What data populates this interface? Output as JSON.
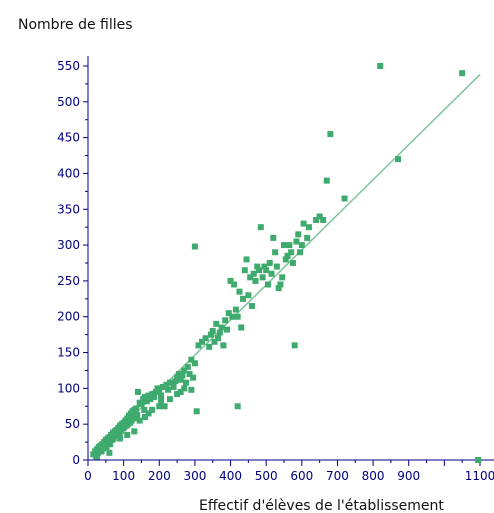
{
  "chart_data": {
    "type": "scatter",
    "title": "",
    "xlabel": "Effectif d'élèves de l'établissement",
    "ylabel": "Nombre de filles",
    "xlim": [
      0,
      1100
    ],
    "ylim": [
      0,
      550
    ],
    "x_ticks": [
      0,
      100,
      200,
      300,
      400,
      500,
      600,
      700,
      800,
      900,
      1100
    ],
    "y_ticks": [
      0,
      50,
      100,
      150,
      200,
      250,
      300,
      350,
      400,
      450,
      500,
      550
    ],
    "grid": false,
    "legend": "none",
    "colors": {
      "points": "#3faa6e",
      "trend": "#7cc49b",
      "axis": "#00008b",
      "tick_text": "#000080"
    },
    "trendline": {
      "x1": 15,
      "y1": 7,
      "x2": 1100,
      "y2": 538
    },
    "points": [
      [
        15,
        8
      ],
      [
        20,
        12
      ],
      [
        22,
        6
      ],
      [
        25,
        15
      ],
      [
        28,
        10
      ],
      [
        30,
        18
      ],
      [
        32,
        14
      ],
      [
        35,
        20
      ],
      [
        38,
        12
      ],
      [
        40,
        22
      ],
      [
        42,
        16
      ],
      [
        45,
        25
      ],
      [
        48,
        20
      ],
      [
        50,
        28
      ],
      [
        52,
        18
      ],
      [
        55,
        30
      ],
      [
        58,
        24
      ],
      [
        60,
        32
      ],
      [
        62,
        22
      ],
      [
        65,
        35
      ],
      [
        68,
        28
      ],
      [
        70,
        38
      ],
      [
        72,
        30
      ],
      [
        75,
        40
      ],
      [
        78,
        34
      ],
      [
        80,
        42
      ],
      [
        82,
        36
      ],
      [
        85,
        45
      ],
      [
        88,
        38
      ],
      [
        90,
        48
      ],
      [
        92,
        40
      ],
      [
        95,
        50
      ],
      [
        98,
        44
      ],
      [
        100,
        52
      ],
      [
        102,
        46
      ],
      [
        105,
        55
      ],
      [
        108,
        48
      ],
      [
        110,
        58
      ],
      [
        112,
        50
      ],
      [
        115,
        62
      ],
      [
        118,
        52
      ],
      [
        120,
        65
      ],
      [
        122,
        55
      ],
      [
        125,
        68
      ],
      [
        128,
        58
      ],
      [
        130,
        70
      ],
      [
        132,
        60
      ],
      [
        135,
        72
      ],
      [
        138,
        63
      ],
      [
        140,
        95
      ],
      [
        145,
        80
      ],
      [
        150,
        78
      ],
      [
        155,
        85
      ],
      [
        158,
        70
      ],
      [
        160,
        88
      ],
      [
        165,
        82
      ],
      [
        170,
        90
      ],
      [
        175,
        85
      ],
      [
        180,
        92
      ],
      [
        185,
        88
      ],
      [
        190,
        95
      ],
      [
        195,
        100
      ],
      [
        200,
        98
      ],
      [
        205,
        90
      ],
      [
        210,
        102
      ],
      [
        215,
        75
      ],
      [
        220,
        105
      ],
      [
        225,
        98
      ],
      [
        230,
        108
      ],
      [
        240,
        102
      ],
      [
        245,
        110
      ],
      [
        250,
        115
      ],
      [
        255,
        120
      ],
      [
        260,
        112
      ],
      [
        265,
        118
      ],
      [
        270,
        125
      ],
      [
        275,
        108
      ],
      [
        280,
        130
      ],
      [
        285,
        120
      ],
      [
        290,
        140
      ],
      [
        295,
        115
      ],
      [
        300,
        135
      ],
      [
        305,
        68
      ],
      [
        310,
        160
      ],
      [
        320,
        165
      ],
      [
        330,
        170
      ],
      [
        340,
        158
      ],
      [
        345,
        175
      ],
      [
        350,
        180
      ],
      [
        355,
        165
      ],
      [
        360,
        190
      ],
      [
        365,
        170
      ],
      [
        370,
        178
      ],
      [
        375,
        185
      ],
      [
        380,
        160
      ],
      [
        385,
        195
      ],
      [
        390,
        182
      ],
      [
        395,
        205
      ],
      [
        400,
        250
      ],
      [
        405,
        200
      ],
      [
        410,
        245
      ],
      [
        415,
        210
      ],
      [
        420,
        200
      ],
      [
        425,
        235
      ],
      [
        430,
        185
      ],
      [
        435,
        225
      ],
      [
        440,
        265
      ],
      [
        445,
        280
      ],
      [
        450,
        230
      ],
      [
        455,
        255
      ],
      [
        460,
        215
      ],
      [
        465,
        260
      ],
      [
        470,
        250
      ],
      [
        475,
        270
      ],
      [
        480,
        265
      ],
      [
        485,
        325
      ],
      [
        490,
        255
      ],
      [
        495,
        270
      ],
      [
        500,
        265
      ],
      [
        505,
        245
      ],
      [
        510,
        275
      ],
      [
        515,
        260
      ],
      [
        520,
        310
      ],
      [
        525,
        290
      ],
      [
        530,
        270
      ],
      [
        535,
        240
      ],
      [
        540,
        245
      ],
      [
        545,
        255
      ],
      [
        550,
        300
      ],
      [
        555,
        280
      ],
      [
        560,
        285
      ],
      [
        565,
        300
      ],
      [
        570,
        290
      ],
      [
        575,
        275
      ],
      [
        580,
        160
      ],
      [
        585,
        305
      ],
      [
        590,
        315
      ],
      [
        595,
        290
      ],
      [
        600,
        300
      ],
      [
        605,
        330
      ],
      [
        615,
        310
      ],
      [
        620,
        325
      ],
      [
        640,
        335
      ],
      [
        650,
        340
      ],
      [
        660,
        335
      ],
      [
        670,
        390
      ],
      [
        680,
        455
      ],
      [
        720,
        365
      ],
      [
        820,
        550
      ],
      [
        870,
        420
      ],
      [
        1050,
        540
      ],
      [
        1095,
        0
      ],
      [
        25,
        5
      ],
      [
        60,
        10
      ],
      [
        90,
        30
      ],
      [
        110,
        35
      ],
      [
        130,
        40
      ],
      [
        160,
        60
      ],
      [
        180,
        70
      ],
      [
        200,
        75
      ],
      [
        230,
        85
      ],
      [
        250,
        92
      ],
      [
        270,
        100
      ],
      [
        290,
        98
      ],
      [
        300,
        298
      ],
      [
        420,
        75
      ],
      [
        170,
        65
      ],
      [
        145,
        55
      ],
      [
        205,
        82
      ],
      [
        260,
        95
      ]
    ]
  }
}
